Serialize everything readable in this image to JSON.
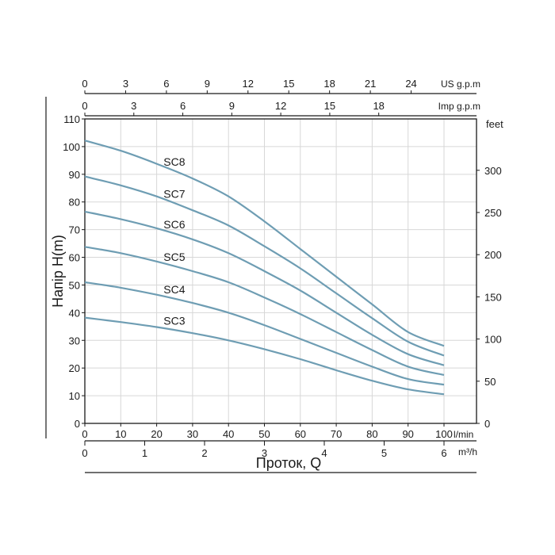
{
  "chart_data": {
    "type": "line",
    "title": "",
    "ylabel": "Напір H(m)",
    "xlabel": "Проток, Q",
    "primary_x": {
      "unit": "l/min",
      "ticks": [
        0,
        10,
        20,
        30,
        40,
        50,
        60,
        70,
        80,
        90,
        100
      ],
      "range": [
        0,
        100
      ]
    },
    "primary_y": {
      "unit": "m",
      "ticks": [
        0,
        10,
        20,
        30,
        40,
        50,
        60,
        70,
        80,
        90,
        100,
        110
      ],
      "range": [
        0,
        110
      ]
    },
    "right_y": {
      "unit": "feet",
      "ticks": [
        0,
        50,
        100,
        150,
        200,
        250,
        300
      ]
    },
    "bottom_x2": {
      "unit": "m³/h",
      "ticks": [
        0,
        1,
        2,
        3,
        4,
        5,
        6
      ]
    },
    "top_x1": {
      "unit": "US g.p.m",
      "ticks": [
        0,
        3,
        6,
        9,
        12,
        15,
        18,
        21,
        24
      ]
    },
    "top_x2": {
      "unit": "Imp g.p.m",
      "ticks": [
        0,
        3,
        6,
        9,
        12,
        15,
        18
      ]
    },
    "x": [
      0,
      10,
      20,
      30,
      40,
      50,
      60,
      70,
      80,
      90,
      100
    ],
    "series": [
      {
        "name": "SC8",
        "values": [
          102.2,
          98.5,
          93.8,
          88.5,
          82,
          73,
          63,
          53,
          43,
          33,
          28
        ]
      },
      {
        "name": "SC7",
        "values": [
          89.2,
          86,
          82,
          77,
          71.5,
          64,
          56,
          47,
          38,
          29.5,
          24.5
        ]
      },
      {
        "name": "SC6",
        "values": [
          76.5,
          73.8,
          70.5,
          66.5,
          61.5,
          55,
          48,
          40,
          32,
          25,
          21
        ]
      },
      {
        "name": "SC5",
        "values": [
          63.8,
          61.5,
          58.5,
          55,
          51,
          45.5,
          39.5,
          33,
          26.5,
          20.5,
          17.5
        ]
      },
      {
        "name": "SC4",
        "values": [
          51,
          49,
          46.5,
          43.5,
          40,
          35.5,
          30.5,
          25.5,
          20.5,
          16,
          14
        ]
      },
      {
        "name": "SC3",
        "values": [
          38.2,
          36.6,
          34.8,
          32.6,
          30,
          26.8,
          23.2,
          19.2,
          15.4,
          12.3,
          10.5
        ]
      }
    ],
    "grid": true,
    "line_color": "#6e9db3"
  }
}
